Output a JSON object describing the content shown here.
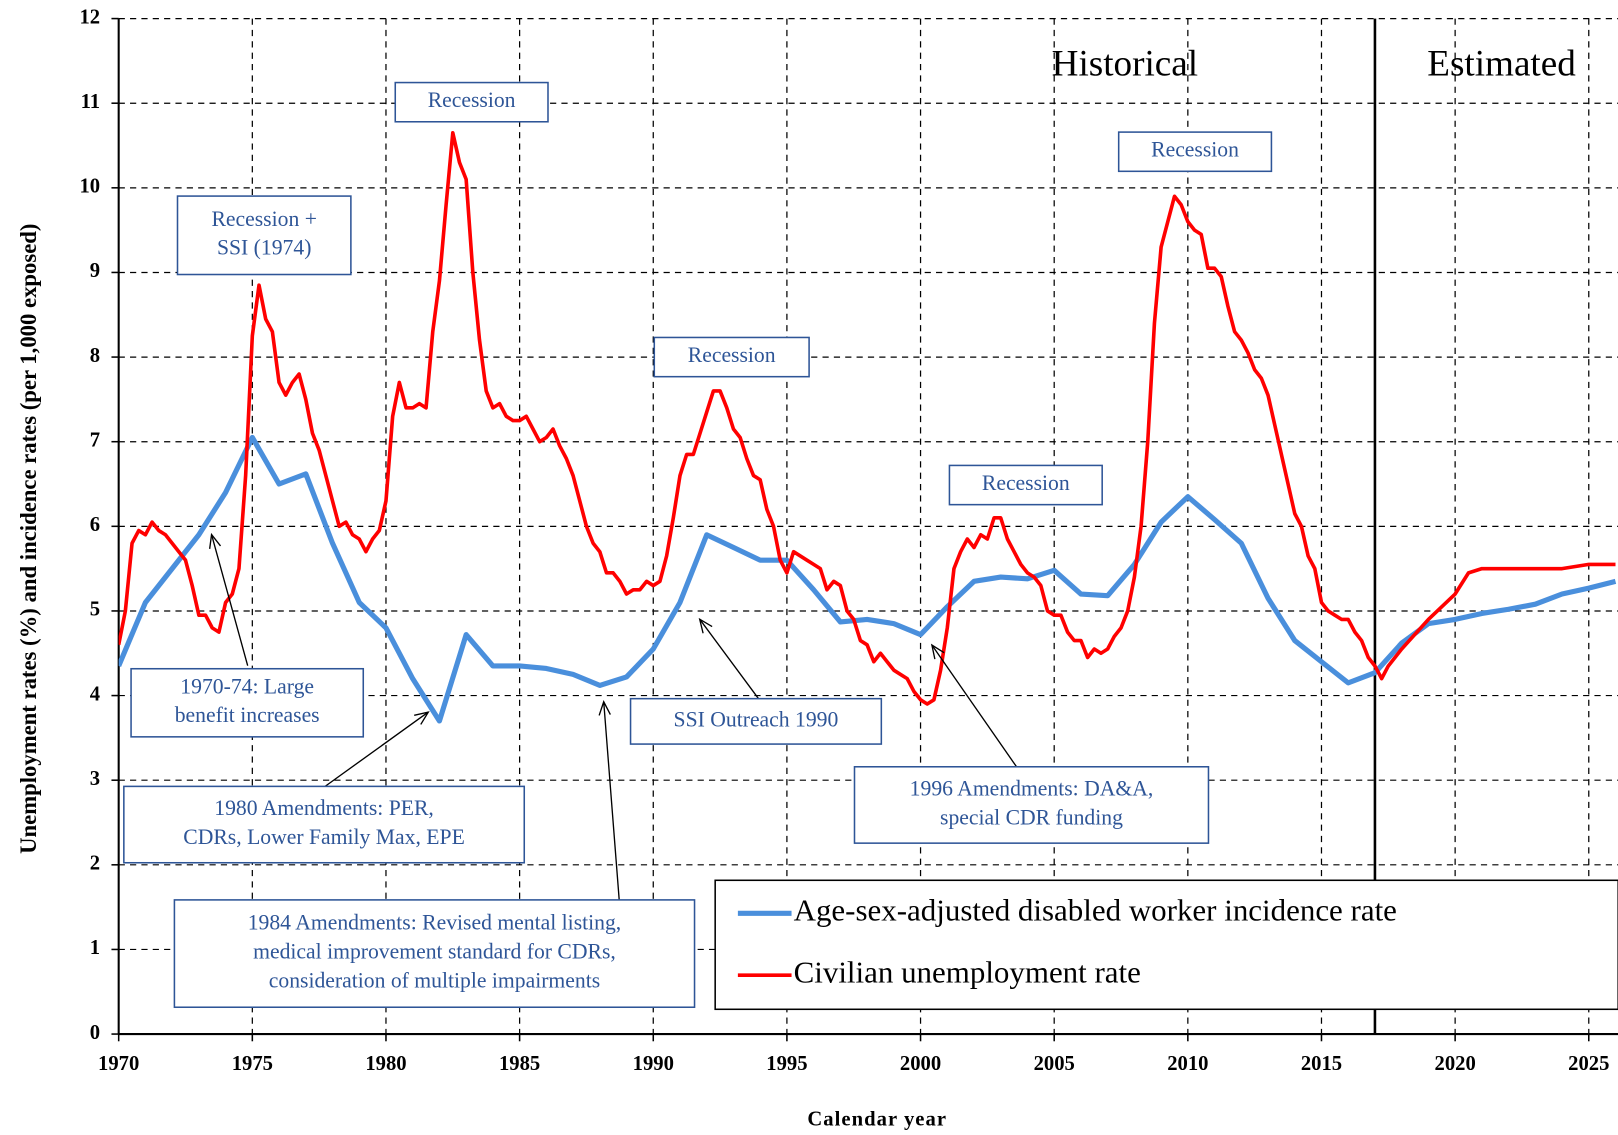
{
  "chart_data": {
    "type": "line",
    "x_label": "Calendar year",
    "y_label": "Unemployment rates (%)  and incidence rates (per 1,000 exposed)",
    "xlim": [
      1970,
      2026.1
    ],
    "xticks": [
      1970,
      1975,
      1980,
      1985,
      1990,
      1995,
      2000,
      2005,
      2010,
      2015,
      2020,
      2025
    ],
    "ylim": [
      0,
      12
    ],
    "yticks": [
      0,
      1,
      2,
      3,
      4,
      5,
      6,
      7,
      8,
      9,
      10,
      11,
      12
    ],
    "grid": true,
    "legend": "lower right",
    "divider_x": 2017,
    "region_labels": [
      "Historical",
      "Estimated"
    ],
    "series": [
      {
        "name": "Age-sex-adjusted disabled worker incidence rate",
        "color": "#4a8fdc",
        "x": [
          1970,
          1971,
          1972,
          1973,
          1974,
          1975,
          1976,
          1977,
          1978,
          1979,
          1980,
          1981,
          1982,
          1983,
          1984,
          1985,
          1986,
          1987,
          1988,
          1989,
          1990,
          1991,
          1992,
          1993,
          1994,
          1995,
          1996,
          1997,
          1998,
          1999,
          2000,
          2001,
          2002,
          2003,
          2004,
          2005,
          2006,
          2007,
          2008,
          2009,
          2010,
          2011,
          2012,
          2013,
          2014,
          2015,
          2016,
          2017,
          2018,
          2019,
          2020,
          2021,
          2022,
          2023,
          2024,
          2025,
          2026
        ],
        "values": [
          4.35,
          5.1,
          5.5,
          5.9,
          6.4,
          7.05,
          6.5,
          6.62,
          5.8,
          5.1,
          4.8,
          4.2,
          3.7,
          4.72,
          4.35,
          4.35,
          4.32,
          4.25,
          4.12,
          4.22,
          4.55,
          5.1,
          5.9,
          5.75,
          5.6,
          5.6,
          5.25,
          4.87,
          4.9,
          4.85,
          4.72,
          5.05,
          5.35,
          5.4,
          5.38,
          5.48,
          5.2,
          5.18,
          5.55,
          6.05,
          6.35,
          6.08,
          5.8,
          5.15,
          4.65,
          4.4,
          4.15,
          4.27,
          4.62,
          4.85,
          4.9,
          4.97,
          5.02,
          5.08,
          5.2,
          5.27,
          5.35
        ]
      },
      {
        "name": "Civilian unemployment rate",
        "color": "#ff0000",
        "x": [
          1970,
          1970.25,
          1970.5,
          1970.75,
          1971,
          1971.25,
          1971.5,
          1971.75,
          1972,
          1972.25,
          1972.5,
          1972.75,
          1973,
          1973.25,
          1973.5,
          1973.75,
          1974,
          1974.25,
          1974.5,
          1974.75,
          1975,
          1975.25,
          1975.5,
          1975.75,
          1976,
          1976.25,
          1976.5,
          1976.75,
          1977,
          1977.25,
          1977.5,
          1977.75,
          1978,
          1978.25,
          1978.5,
          1978.75,
          1979,
          1979.25,
          1979.5,
          1979.75,
          1980,
          1980.25,
          1980.5,
          1980.75,
          1981,
          1981.25,
          1981.5,
          1981.75,
          1982,
          1982.25,
          1982.5,
          1982.75,
          1983,
          1983.25,
          1983.5,
          1983.75,
          1984,
          1984.25,
          1984.5,
          1984.75,
          1985,
          1985.25,
          1985.5,
          1985.75,
          1986,
          1986.25,
          1986.5,
          1986.75,
          1987,
          1987.25,
          1987.5,
          1987.75,
          1988,
          1988.25,
          1988.5,
          1988.75,
          1989,
          1989.25,
          1989.5,
          1989.75,
          1990,
          1990.25,
          1990.5,
          1990.75,
          1991,
          1991.25,
          1991.5,
          1991.75,
          1992,
          1992.25,
          1992.5,
          1992.75,
          1993,
          1993.25,
          1993.5,
          1993.75,
          1994,
          1994.25,
          1994.5,
          1994.75,
          1995,
          1995.25,
          1995.5,
          1995.75,
          1996,
          1996.25,
          1996.5,
          1996.75,
          1997,
          1997.25,
          1997.5,
          1997.75,
          1998,
          1998.25,
          1998.5,
          1998.75,
          1999,
          1999.25,
          1999.5,
          1999.75,
          2000,
          2000.25,
          2000.5,
          2000.75,
          2001,
          2001.25,
          2001.5,
          2001.75,
          2002,
          2002.25,
          2002.5,
          2002.75,
          2003,
          2003.25,
          2003.5,
          2003.75,
          2004,
          2004.25,
          2004.5,
          2004.75,
          2005,
          2005.25,
          2005.5,
          2005.75,
          2006,
          2006.25,
          2006.5,
          2006.75,
          2007,
          2007.25,
          2007.5,
          2007.75,
          2008,
          2008.25,
          2008.5,
          2008.75,
          2009,
          2009.25,
          2009.5,
          2009.75,
          2010,
          2010.25,
          2010.5,
          2010.75,
          2011,
          2011.25,
          2011.5,
          2011.75,
          2012,
          2012.25,
          2012.5,
          2012.75,
          2013,
          2013.25,
          2013.5,
          2013.75,
          2014,
          2014.25,
          2014.5,
          2014.75,
          2015,
          2015.25,
          2015.5,
          2015.75,
          2016,
          2016.25,
          2016.5,
          2016.75,
          2017,
          2017.25,
          2017.5,
          2018,
          2019,
          2020,
          2020.5,
          2021,
          2022,
          2023,
          2024,
          2025,
          2026
        ],
        "values": [
          4.6,
          5.0,
          5.8,
          5.95,
          5.9,
          6.05,
          5.95,
          5.9,
          5.8,
          5.7,
          5.6,
          5.3,
          4.95,
          4.95,
          4.8,
          4.75,
          5.1,
          5.2,
          5.5,
          6.6,
          8.25,
          8.85,
          8.45,
          8.3,
          7.7,
          7.55,
          7.7,
          7.8,
          7.5,
          7.1,
          6.9,
          6.6,
          6.3,
          6.0,
          6.05,
          5.9,
          5.85,
          5.7,
          5.85,
          5.95,
          6.3,
          7.3,
          7.7,
          7.4,
          7.4,
          7.45,
          7.4,
          8.3,
          8.9,
          9.8,
          10.65,
          10.3,
          10.1,
          9.0,
          8.2,
          7.6,
          7.4,
          7.45,
          7.3,
          7.25,
          7.25,
          7.3,
          7.15,
          7.0,
          7.05,
          7.15,
          6.95,
          6.8,
          6.6,
          6.3,
          6.0,
          5.8,
          5.7,
          5.45,
          5.45,
          5.35,
          5.2,
          5.25,
          5.25,
          5.35,
          5.3,
          5.35,
          5.65,
          6.1,
          6.6,
          6.85,
          6.85,
          7.1,
          7.35,
          7.6,
          7.6,
          7.4,
          7.15,
          7.05,
          6.8,
          6.6,
          6.55,
          6.2,
          6.0,
          5.6,
          5.45,
          5.7,
          5.65,
          5.6,
          5.55,
          5.5,
          5.25,
          5.35,
          5.3,
          5.0,
          4.9,
          4.65,
          4.6,
          4.4,
          4.5,
          4.4,
          4.3,
          4.25,
          4.2,
          4.05,
          3.95,
          3.9,
          3.95,
          4.3,
          4.8,
          5.5,
          5.7,
          5.85,
          5.75,
          5.9,
          5.85,
          6.1,
          6.1,
          5.85,
          5.7,
          5.55,
          5.45,
          5.4,
          5.3,
          5.0,
          4.95,
          4.95,
          4.75,
          4.65,
          4.65,
          4.45,
          4.55,
          4.5,
          4.55,
          4.7,
          4.8,
          5.0,
          5.4,
          6.0,
          7.0,
          8.4,
          9.3,
          9.6,
          9.9,
          9.8,
          9.6,
          9.5,
          9.45,
          9.05,
          9.05,
          8.95,
          8.6,
          8.3,
          8.2,
          8.05,
          7.85,
          7.75,
          7.55,
          7.2,
          6.85,
          6.5,
          6.15,
          6.0,
          5.65,
          5.5,
          5.1,
          5.0,
          4.95,
          4.9,
          4.9,
          4.75,
          4.65,
          4.45,
          4.35,
          4.2,
          4.35,
          4.55,
          4.9,
          5.2,
          5.45,
          5.5,
          5.5,
          5.5,
          5.5,
          5.55,
          5.55
        ]
      }
    ],
    "annotations": [
      {
        "lines": [
          "Recession +",
          "SSI (1974)"
        ]
      },
      {
        "lines": [
          "Recession"
        ]
      },
      {
        "lines": [
          "Recession"
        ]
      },
      {
        "lines": [
          "Recession"
        ]
      },
      {
        "lines": [
          "Recession"
        ]
      },
      {
        "lines": [
          "1970-74:  Large",
          "benefit  increases"
        ]
      },
      {
        "lines": [
          "1980 Amendments: PER,",
          "CDRs, Lower Family  Max, EPE"
        ]
      },
      {
        "lines": [
          "SSI Outreach 1990"
        ]
      },
      {
        "lines": [
          "1984 Amendments: Revised mental listing,",
          "medical improvement  standard for CDRs,",
          "consideration  of multiple  impairments"
        ]
      },
      {
        "lines": [
          "1996 Amendments: DA&A,",
          "special CDR funding"
        ]
      }
    ]
  }
}
